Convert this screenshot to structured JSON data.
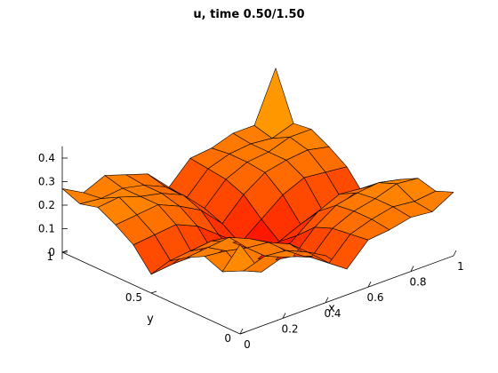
{
  "chart_data": {
    "type": "surface",
    "title": "u, time 0.50/1.50",
    "xlabel": "x",
    "ylabel": "y",
    "zlabel": "",
    "xlim": [
      0,
      1
    ],
    "ylim": [
      0,
      1
    ],
    "zlim": [
      0,
      0.45
    ],
    "xticks": [
      0,
      0.2,
      0.4,
      0.6,
      0.8,
      1
    ],
    "xtick_labels": [
      "0",
      "0.2",
      "0.4",
      "0.6",
      "0.8",
      "1"
    ],
    "yticks": [
      0,
      0.5,
      1
    ],
    "ytick_labels": [
      "0",
      "0.5",
      "1"
    ],
    "zticks": [
      0,
      0.1,
      0.2,
      0.3,
      0.4
    ],
    "ztick_labels": [
      "0",
      "0.1",
      "0.2",
      "0.3",
      "0.4"
    ],
    "grid_n": 11,
    "colormap": "autumn",
    "colors": {
      "low": "#ff0000",
      "high": "#ffff00",
      "edge": "#000000"
    },
    "x": [
      0,
      0.1,
      0.2,
      0.3,
      0.4,
      0.5,
      0.6,
      0.7,
      0.8,
      0.9,
      1
    ],
    "y": [
      0,
      0.1,
      0.2,
      0.3,
      0.4,
      0.5,
      0.6,
      0.7,
      0.8,
      0.9,
      1
    ],
    "z": [
      [
        0.38,
        0.23,
        0.26,
        0.23,
        0.2,
        0.11,
        0.2,
        0.21,
        0.23,
        0.22,
        0.27
      ],
      [
        0.23,
        0.2,
        0.23,
        0.22,
        0.18,
        0.1,
        0.19,
        0.22,
        0.24,
        0.23,
        0.24
      ],
      [
        0.26,
        0.25,
        0.23,
        0.22,
        0.18,
        0.09,
        0.18,
        0.22,
        0.24,
        0.27,
        0.26
      ],
      [
        0.22,
        0.23,
        0.24,
        0.2,
        0.15,
        0.06,
        0.15,
        0.21,
        0.23,
        0.24,
        0.22
      ],
      [
        0.17,
        0.18,
        0.19,
        0.15,
        0.08,
        0.01,
        0.08,
        0.15,
        0.19,
        0.18,
        0.17
      ],
      [
        0.08,
        0.09,
        0.09,
        0.06,
        0.02,
        -0.02,
        0.02,
        0.06,
        0.09,
        0.09,
        0.08
      ],
      [
        0.17,
        0.18,
        0.19,
        0.15,
        0.08,
        0.01,
        0.08,
        0.15,
        0.19,
        0.18,
        0.17
      ],
      [
        0.22,
        0.23,
        0.24,
        0.2,
        0.15,
        0.06,
        0.15,
        0.21,
        0.23,
        0.24,
        0.22
      ],
      [
        0.26,
        0.27,
        0.24,
        0.22,
        0.18,
        0.09,
        0.18,
        0.22,
        0.23,
        0.26,
        0.26
      ],
      [
        0.24,
        0.23,
        0.24,
        0.22,
        0.18,
        0.1,
        0.19,
        0.22,
        0.23,
        0.22,
        0.25
      ],
      [
        0.27,
        0.22,
        0.26,
        0.23,
        0.2,
        0.11,
        0.2,
        0.21,
        0.24,
        0.24,
        0.45
      ]
    ]
  }
}
